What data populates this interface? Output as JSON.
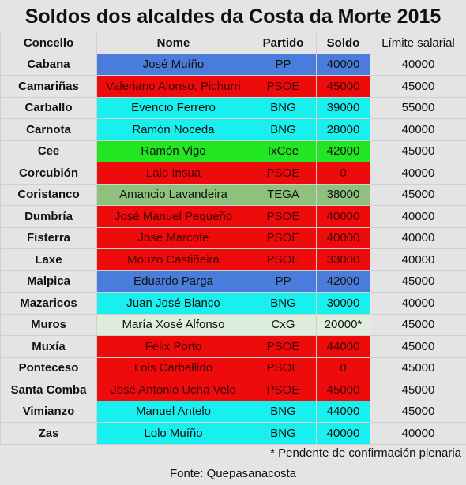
{
  "title": "Soldos dos alcaldes da Costa da Morte 2015",
  "headers": {
    "concello": "Concello",
    "nome": "Nome",
    "partido": "Partido",
    "soldo": "Soldo",
    "limite": "Límite salarial"
  },
  "party_colors": {
    "PP": "#4a7ddb",
    "PSOE": "#ee0b0b",
    "BNG": "#18f0f0",
    "IxCee": "#22e622",
    "TEGA": "#8ec27c",
    "CxG": "#ddeedd"
  },
  "rows": [
    {
      "concello": "Cabana",
      "nome": "José Muíño",
      "partido": "PP",
      "soldo": "40000",
      "limite": "40000"
    },
    {
      "concello": "Camariñas",
      "nome": "Valeriano Alonso, Pichurri",
      "partido": "PSOE",
      "soldo": "45000",
      "limite": "45000"
    },
    {
      "concello": "Carballo",
      "nome": "Evencio Ferrero",
      "partido": "BNG",
      "soldo": "39000",
      "limite": "55000"
    },
    {
      "concello": "Carnota",
      "nome": "Ramón Noceda",
      "partido": "BNG",
      "soldo": "28000",
      "limite": "40000"
    },
    {
      "concello": "Cee",
      "nome": "Ramón Vigo",
      "partido": "IxCee",
      "soldo": "42000",
      "limite": "45000"
    },
    {
      "concello": "Corcubión",
      "nome": "Lalo Insua",
      "partido": "PSOE",
      "soldo": "0",
      "limite": "40000"
    },
    {
      "concello": "Coristanco",
      "nome": "Amancio Lavandeira",
      "partido": "TEGA",
      "soldo": "38000",
      "limite": "45000"
    },
    {
      "concello": "Dumbría",
      "nome": "José Manuel Pequeño",
      "partido": "PSOE",
      "soldo": "40000",
      "limite": "40000"
    },
    {
      "concello": "Fisterra",
      "nome": "Jose Marcote",
      "partido": "PSOE",
      "soldo": "40000",
      "limite": "40000"
    },
    {
      "concello": "Laxe",
      "nome": "Mouzo Castiñeira",
      "partido": "PSOE",
      "soldo": "33000",
      "limite": "40000"
    },
    {
      "concello": "Malpica",
      "nome": "Eduardo Parga",
      "partido": "PP",
      "soldo": "42000",
      "limite": "45000"
    },
    {
      "concello": "Mazaricos",
      "nome": "Juan José Blanco",
      "partido": "BNG",
      "soldo": "30000",
      "limite": "40000"
    },
    {
      "concello": "Muros",
      "nome": "María Xosé Alfonso",
      "partido": "CxG",
      "soldo": "20000*",
      "limite": "45000"
    },
    {
      "concello": "Muxía",
      "nome": "Félix Porto",
      "partido": "PSOE",
      "soldo": "44000",
      "limite": "45000"
    },
    {
      "concello": "Ponteceso",
      "nome": "Lois Carballido",
      "partido": "PSOE",
      "soldo": "0",
      "limite": "45000"
    },
    {
      "concello": "Santa Comba",
      "nome": "José Antonio Ucha Velo",
      "partido": "PSOE",
      "soldo": "45000",
      "limite": "45000"
    },
    {
      "concello": "Vimianzo",
      "nome": "Manuel Antelo",
      "partido": "BNG",
      "soldo": "44000",
      "limite": "45000"
    },
    {
      "concello": "Zas",
      "nome": "Lolo Muíño",
      "partido": "BNG",
      "soldo": "40000",
      "limite": "40000"
    }
  ],
  "footnote": "* Pendente de confirmación plenaria",
  "source": "Fonte: Quepasanacosta"
}
